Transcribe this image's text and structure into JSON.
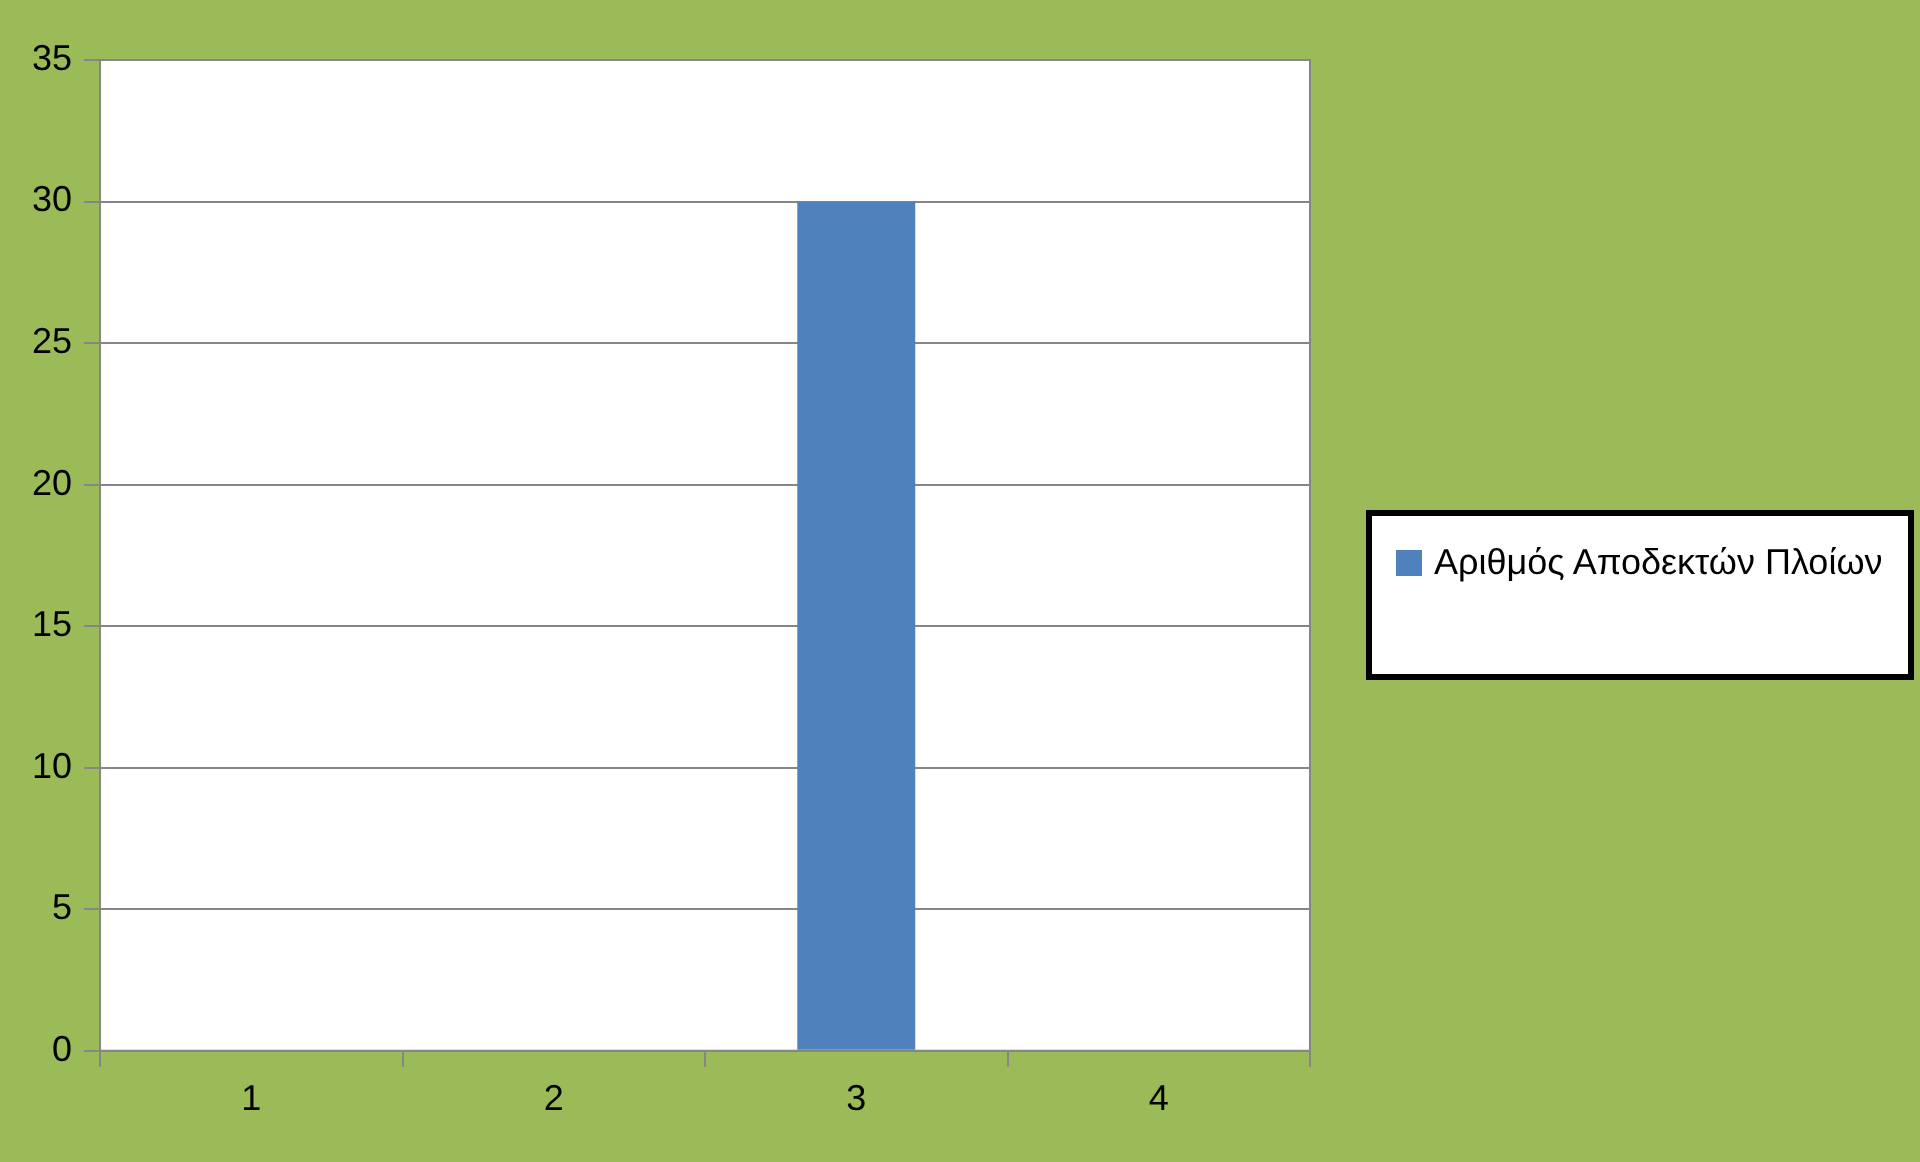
{
  "chart_data": {
    "type": "bar",
    "categories": [
      "1",
      "2",
      "3",
      "4"
    ],
    "series": [
      {
        "name": "Αριθμός Αποδεκτών Πλοίων",
        "color": "#4f81bd",
        "values": [
          0,
          0,
          30,
          0
        ]
      }
    ],
    "ylim": [
      0,
      35
    ],
    "yticks": [
      0,
      5,
      10,
      15,
      20,
      25,
      30,
      35
    ],
    "grid": "y",
    "legend": "right"
  }
}
